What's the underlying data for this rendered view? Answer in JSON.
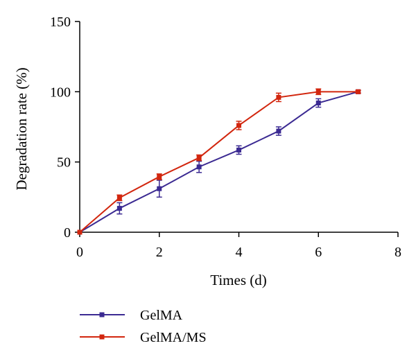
{
  "chart_data": {
    "type": "line",
    "xlabel": "Times (d)",
    "ylabel": "Degradation rate (%)",
    "xlim": [
      0,
      8
    ],
    "ylim": [
      0,
      150
    ],
    "xticks": [
      "0",
      "2",
      "4",
      "6",
      "8"
    ],
    "yticks": [
      "0",
      "50",
      "100",
      "150"
    ],
    "grid": false,
    "legend_position": "bottom-left",
    "series": [
      {
        "name": "GelMA",
        "color": "#3b2a92",
        "x": [
          0,
          1,
          2,
          3,
          4,
          5,
          6,
          7
        ],
        "y": [
          0,
          17,
          31,
          46.5,
          58.5,
          72,
          92,
          100
        ],
        "err": [
          0,
          4,
          6,
          4,
          3,
          3,
          3,
          1
        ]
      },
      {
        "name": "GelMA/MS",
        "color": "#d2260e",
        "x": [
          0,
          1,
          2,
          3,
          4,
          5,
          6,
          7
        ],
        "y": [
          0,
          24.5,
          39.5,
          53,
          76,
          96,
          100,
          100
        ],
        "err": [
          0,
          2,
          2,
          2,
          3,
          3,
          2,
          1
        ]
      }
    ]
  }
}
